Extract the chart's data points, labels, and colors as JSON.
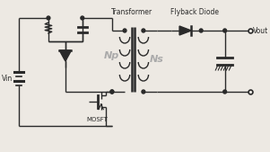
{
  "bg_color": "#ede9e3",
  "line_color": "#2a2a2a",
  "gray_text": "#aaaaaa",
  "title_labels": {
    "transformer": "Transformer",
    "flyback": "Flyback Diode",
    "vout": "Vout",
    "vin": "Vin",
    "np": "Np",
    "ns": "Ns",
    "mosfet": "MOSFT"
  },
  "figsize": [
    3.0,
    1.65
  ],
  "dpi": 100
}
